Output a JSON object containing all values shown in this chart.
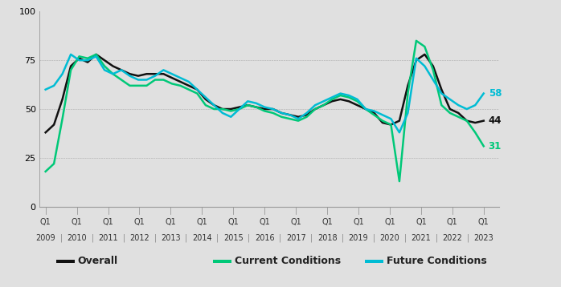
{
  "background_color": "#e0e0e0",
  "plot_bg_color": "#e0e0e0",
  "legend_bg_color": "#f0f0f0",
  "ylim": [
    0,
    100
  ],
  "yticks": [
    0,
    25,
    50,
    75,
    100
  ],
  "overall": [
    38,
    42,
    55,
    72,
    76,
    74,
    78,
    75,
    72,
    70,
    68,
    67,
    68,
    68,
    68,
    66,
    64,
    62,
    60,
    55,
    52,
    50,
    50,
    51,
    52,
    51,
    50,
    50,
    48,
    47,
    46,
    47,
    50,
    52,
    54,
    55,
    54,
    52,
    50,
    48,
    43,
    42,
    44,
    62,
    75,
    78,
    72,
    60,
    50,
    48,
    44,
    43,
    44
  ],
  "current": [
    18,
    22,
    45,
    70,
    77,
    76,
    78,
    72,
    68,
    65,
    62,
    62,
    62,
    65,
    65,
    63,
    62,
    60,
    58,
    52,
    50,
    50,
    49,
    50,
    52,
    51,
    49,
    48,
    46,
    45,
    44,
    46,
    50,
    52,
    55,
    57,
    56,
    54,
    50,
    47,
    44,
    42,
    13,
    58,
    85,
    82,
    70,
    52,
    48,
    46,
    44,
    38,
    31
  ],
  "future": [
    60,
    62,
    68,
    78,
    75,
    75,
    77,
    70,
    68,
    70,
    67,
    65,
    65,
    67,
    70,
    68,
    66,
    64,
    60,
    56,
    52,
    48,
    46,
    50,
    54,
    53,
    51,
    50,
    48,
    47,
    45,
    48,
    52,
    54,
    56,
    58,
    57,
    55,
    50,
    49,
    47,
    45,
    38,
    48,
    76,
    72,
    65,
    58,
    55,
    52,
    50,
    52,
    58
  ],
  "end_labels": {
    "future": {
      "value": 58,
      "color": "#00bcd4"
    },
    "overall": {
      "value": 44,
      "color": "#111111"
    },
    "current": {
      "value": 31,
      "color": "#00c878"
    }
  },
  "line_colors": {
    "overall": "#111111",
    "current": "#00c878",
    "future": "#00bcd4"
  },
  "line_widths": {
    "overall": 1.8,
    "current": 1.8,
    "future": 1.8
  },
  "legend": [
    {
      "label": "Overall",
      "color": "#111111"
    },
    {
      "label": "Current Conditions",
      "color": "#00c878"
    },
    {
      "label": "Future Conditions",
      "color": "#00bcd4"
    }
  ],
  "xlabel_years": [
    "2009",
    "2010",
    "2011",
    "2012",
    "2013",
    "2014",
    "2015",
    "2016",
    "2017",
    "2018",
    "2019",
    "2020",
    "2021",
    "2022",
    "2023"
  ]
}
